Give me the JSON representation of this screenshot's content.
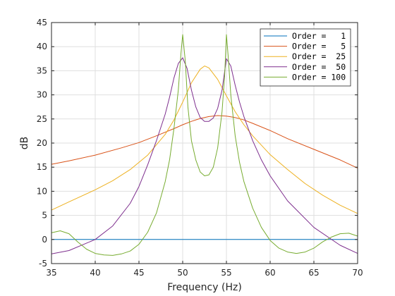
{
  "chart_data": {
    "type": "line",
    "title": "",
    "xlabel": "Frequency (Hz)",
    "ylabel": "dB",
    "xlim": [
      35,
      70
    ],
    "ylim": [
      -5,
      45
    ],
    "xticks": [
      35,
      40,
      45,
      50,
      55,
      60,
      65,
      70
    ],
    "yticks": [
      -5,
      0,
      5,
      10,
      15,
      20,
      25,
      30,
      35,
      40,
      45
    ],
    "grid": true,
    "legend_position": "top-right",
    "series": [
      {
        "name": "Order =   1",
        "color": "#0072BD",
        "x": [
          35,
          70
        ],
        "y": [
          0,
          0
        ]
      },
      {
        "name": "Order =   5",
        "color": "#D95319",
        "x": [
          35,
          37,
          40,
          43,
          45,
          47,
          49,
          50,
          51,
          52,
          53,
          54,
          55,
          56,
          57,
          58,
          60,
          62,
          65,
          68,
          70
        ],
        "y": [
          15.6,
          16.3,
          17.5,
          19.0,
          20.1,
          21.5,
          23.0,
          23.8,
          24.5,
          25.1,
          25.5,
          25.7,
          25.6,
          25.3,
          24.8,
          24.1,
          22.6,
          20.9,
          18.7,
          16.5,
          14.8
        ]
      },
      {
        "name": "Order =  25",
        "color": "#EDB120",
        "x": [
          35,
          37,
          40,
          42,
          44,
          46,
          48,
          49,
          50,
          51,
          52,
          52.5,
          53,
          54,
          55,
          56,
          57,
          58,
          60,
          62,
          64,
          66,
          68,
          70
        ],
        "y": [
          6.1,
          7.8,
          10.3,
          12.2,
          14.5,
          17.5,
          21.8,
          24.8,
          28.5,
          32.5,
          35.3,
          36.0,
          35.6,
          33.2,
          29.8,
          26.5,
          23.8,
          21.5,
          17.6,
          14.5,
          11.6,
          9.2,
          7.1,
          5.4
        ]
      },
      {
        "name": "Order =  50",
        "color": "#7E2F8E",
        "x": [
          35,
          37,
          40,
          42,
          44,
          45,
          46,
          47,
          48,
          48.5,
          49,
          49.5,
          50,
          50.5,
          51,
          51.5,
          52,
          52.5,
          53,
          53.5,
          54,
          54.5,
          55,
          55.5,
          56,
          56.5,
          57,
          58,
          59,
          60,
          62,
          65,
          68,
          70
        ],
        "y": [
          -3.0,
          -2.3,
          0.0,
          2.8,
          7.5,
          11.0,
          15.5,
          20.5,
          26.0,
          29.5,
          33.5,
          36.5,
          37.7,
          35.5,
          31.0,
          27.5,
          25.3,
          24.5,
          24.5,
          25.2,
          27.2,
          31.0,
          37.5,
          36.0,
          32.0,
          28.5,
          25.5,
          20.5,
          16.5,
          13.2,
          8.0,
          2.5,
          -1.2,
          -2.9
        ]
      },
      {
        "name": "Order = 100",
        "color": "#77AC30",
        "x": [
          35,
          36,
          37,
          38,
          39,
          40,
          41,
          42,
          43,
          44,
          45,
          46,
          47,
          48,
          48.5,
          49,
          49.5,
          49.8,
          50,
          50.3,
          50.6,
          51,
          51.5,
          52,
          52.5,
          53,
          53.5,
          54,
          54.5,
          54.8,
          55,
          55.2,
          55.5,
          56,
          56.5,
          57,
          58,
          59,
          60,
          61,
          62,
          63,
          64,
          65,
          66,
          67,
          68,
          69,
          70
        ],
        "y": [
          1.4,
          1.8,
          1.2,
          -0.5,
          -2.0,
          -2.9,
          -3.2,
          -3.3,
          -3.0,
          -2.4,
          -1.0,
          1.5,
          5.5,
          12.0,
          16.5,
          23.0,
          31.0,
          38.5,
          42.5,
          37.0,
          27.5,
          20.5,
          16.5,
          14.0,
          13.2,
          13.4,
          15.0,
          19.0,
          26.5,
          34.0,
          42.5,
          38.0,
          30.0,
          21.5,
          16.0,
          12.0,
          6.5,
          2.5,
          -0.2,
          -1.8,
          -2.6,
          -2.9,
          -2.6,
          -1.8,
          -0.5,
          0.5,
          1.2,
          1.3,
          0.7
        ]
      }
    ]
  }
}
